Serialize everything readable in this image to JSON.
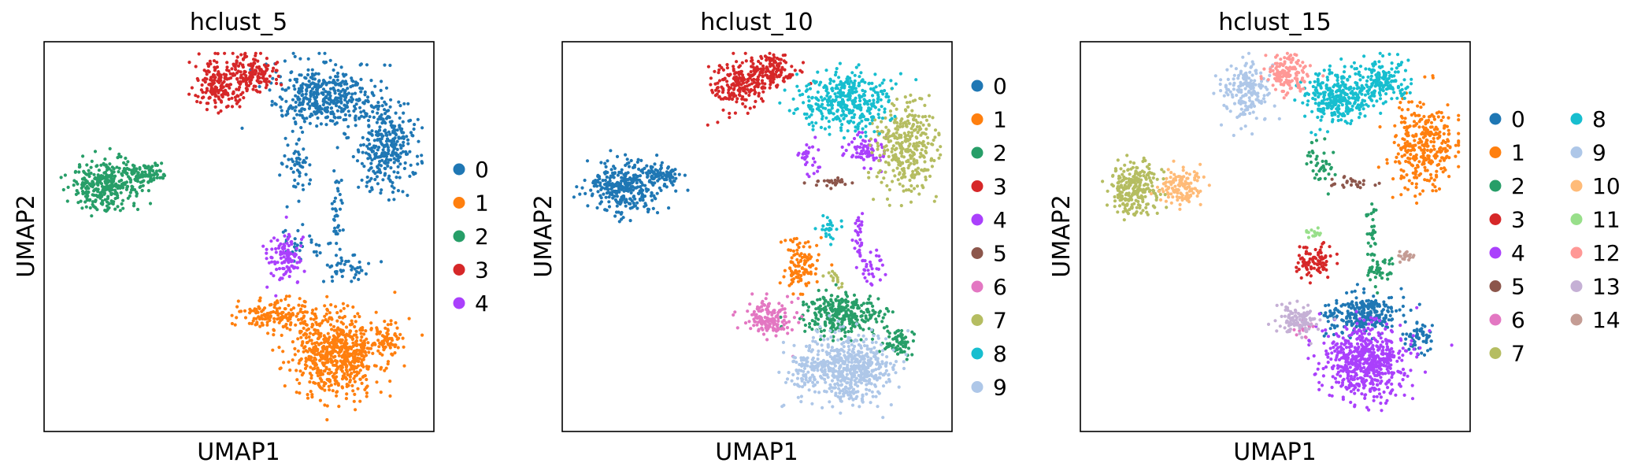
{
  "chart_data": [
    {
      "type": "scatter",
      "title": "hclust_5",
      "xlabel": "UMAP1",
      "ylabel": "UMAP2",
      "legend": "right",
      "grid": false,
      "series": [
        {
          "name": "0",
          "color": "#1f77b4"
        },
        {
          "name": "1",
          "color": "#ff7f0e"
        },
        {
          "name": "2",
          "color": "#279e68"
        },
        {
          "name": "3",
          "color": "#d62728"
        },
        {
          "name": "4",
          "color": "#aa40fc"
        }
      ]
    },
    {
      "type": "scatter",
      "title": "hclust_10",
      "xlabel": "UMAP1",
      "ylabel": "UMAP2",
      "legend": "right",
      "grid": false,
      "series": [
        {
          "name": "0",
          "color": "#1f77b4"
        },
        {
          "name": "1",
          "color": "#ff7f0e"
        },
        {
          "name": "2",
          "color": "#279e68"
        },
        {
          "name": "3",
          "color": "#d62728"
        },
        {
          "name": "4",
          "color": "#aa40fc"
        },
        {
          "name": "5",
          "color": "#8c564b"
        },
        {
          "name": "6",
          "color": "#e377c2"
        },
        {
          "name": "7",
          "color": "#b5bd61"
        },
        {
          "name": "8",
          "color": "#17becf"
        },
        {
          "name": "9",
          "color": "#aec7e8"
        }
      ]
    },
    {
      "type": "scatter",
      "title": "hclust_15",
      "xlabel": "UMAP1",
      "ylabel": "UMAP2",
      "legend": "right",
      "grid": false,
      "series": [
        {
          "name": "0",
          "color": "#1f77b4"
        },
        {
          "name": "1",
          "color": "#ff7f0e"
        },
        {
          "name": "2",
          "color": "#279e68"
        },
        {
          "name": "3",
          "color": "#d62728"
        },
        {
          "name": "4",
          "color": "#aa40fc"
        },
        {
          "name": "5",
          "color": "#8c564b"
        },
        {
          "name": "6",
          "color": "#e377c2"
        },
        {
          "name": "7",
          "color": "#b5bd61"
        },
        {
          "name": "8",
          "color": "#17becf"
        },
        {
          "name": "9",
          "color": "#aec7e8"
        },
        {
          "name": "10",
          "color": "#ffbb78"
        },
        {
          "name": "11",
          "color": "#98df8a"
        },
        {
          "name": "12",
          "color": "#ff9896"
        },
        {
          "name": "13",
          "color": "#c5b0d5"
        },
        {
          "name": "14",
          "color": "#c49c94"
        }
      ]
    }
  ]
}
